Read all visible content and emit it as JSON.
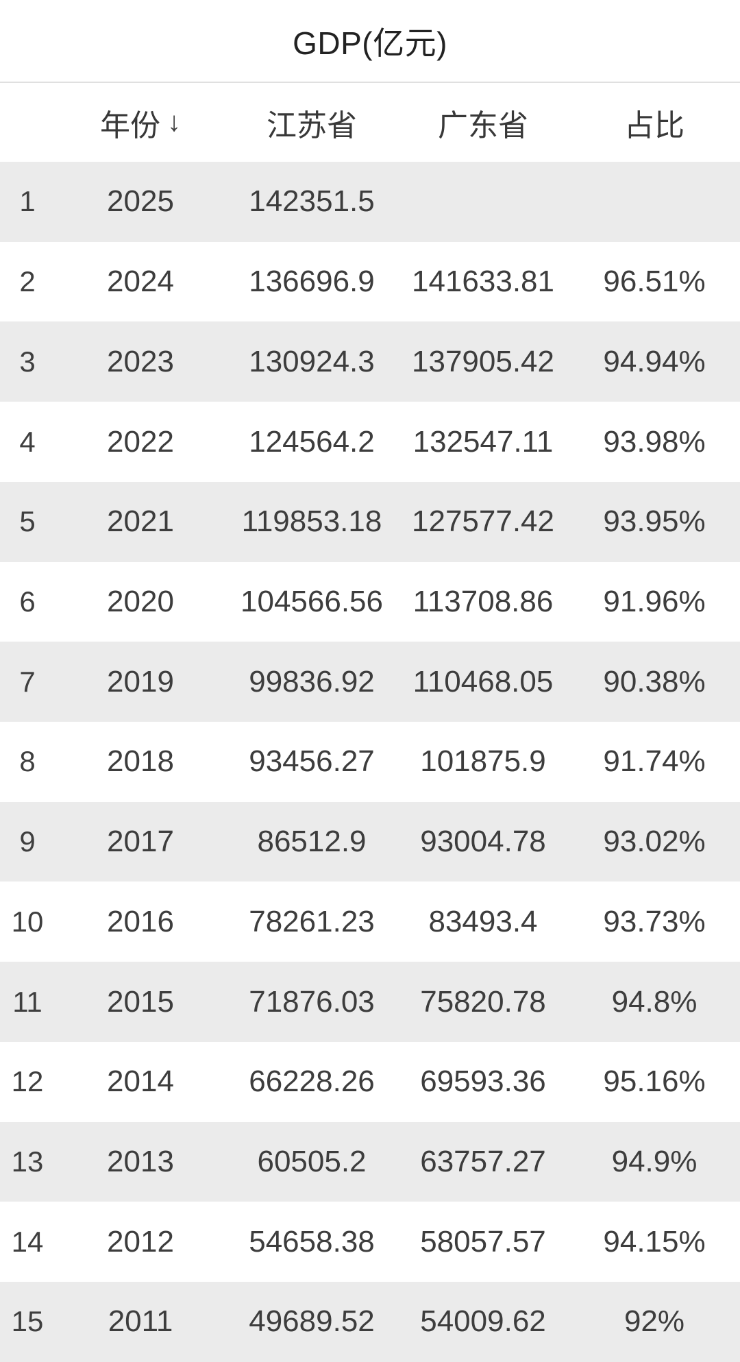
{
  "title": "GDP(亿元)",
  "table": {
    "index_header": "",
    "columns": [
      {
        "label": "年份",
        "sort_icon": "↓",
        "sort": "descending"
      },
      {
        "label": "江苏省"
      },
      {
        "label": "广东省"
      },
      {
        "label": "占比"
      }
    ],
    "rows": [
      {
        "index": "1",
        "year": "2025",
        "jiangsu": "142351.5",
        "guangdong": "",
        "ratio": ""
      },
      {
        "index": "2",
        "year": "2024",
        "jiangsu": "136696.9",
        "guangdong": "141633.81",
        "ratio": "96.51%"
      },
      {
        "index": "3",
        "year": "2023",
        "jiangsu": "130924.3",
        "guangdong": "137905.42",
        "ratio": "94.94%"
      },
      {
        "index": "4",
        "year": "2022",
        "jiangsu": "124564.2",
        "guangdong": "132547.11",
        "ratio": "93.98%"
      },
      {
        "index": "5",
        "year": "2021",
        "jiangsu": "119853.18",
        "guangdong": "127577.42",
        "ratio": "93.95%"
      },
      {
        "index": "6",
        "year": "2020",
        "jiangsu": "104566.56",
        "guangdong": "113708.86",
        "ratio": "91.96%"
      },
      {
        "index": "7",
        "year": "2019",
        "jiangsu": "99836.92",
        "guangdong": "110468.05",
        "ratio": "90.38%"
      },
      {
        "index": "8",
        "year": "2018",
        "jiangsu": "93456.27",
        "guangdong": "101875.9",
        "ratio": "91.74%"
      },
      {
        "index": "9",
        "year": "2017",
        "jiangsu": "86512.9",
        "guangdong": "93004.78",
        "ratio": "93.02%"
      },
      {
        "index": "10",
        "year": "2016",
        "jiangsu": "78261.23",
        "guangdong": "83493.4",
        "ratio": "93.73%"
      },
      {
        "index": "11",
        "year": "2015",
        "jiangsu": "71876.03",
        "guangdong": "75820.78",
        "ratio": "94.8%"
      },
      {
        "index": "12",
        "year": "2014",
        "jiangsu": "66228.26",
        "guangdong": "69593.36",
        "ratio": "95.16%"
      },
      {
        "index": "13",
        "year": "2013",
        "jiangsu": "60505.2",
        "guangdong": "63757.27",
        "ratio": "94.9%"
      },
      {
        "index": "14",
        "year": "2012",
        "jiangsu": "54658.38",
        "guangdong": "58057.57",
        "ratio": "94.15%"
      },
      {
        "index": "15",
        "year": "2011",
        "jiangsu": "49689.52",
        "guangdong": "54009.62",
        "ratio": "92%"
      }
    ]
  },
  "colors": {
    "row_alt_bg": "#ebebeb",
    "row_bg": "#ffffff",
    "cell_text": "#3d3d3d",
    "header_text": "#383838",
    "title_text": "#222222",
    "divider": "#e0e0e0"
  }
}
